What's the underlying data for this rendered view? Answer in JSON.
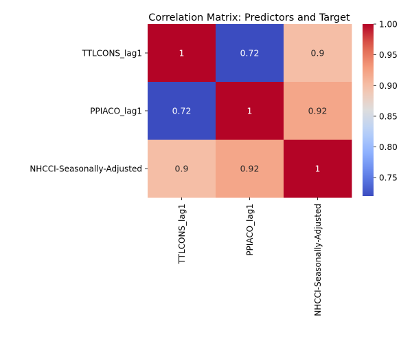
{
  "chart_data": {
    "type": "heatmap",
    "title": "Correlation Matrix: Predictors and Target",
    "row_labels": [
      "TTLCONS_lag1",
      "PPIACO_lag1",
      "NHCCI-Seasonally-Adjusted"
    ],
    "col_labels": [
      "TTLCONS_lag1",
      "PPIACO_lag1",
      "NHCCI-Seasonally-Adjusted"
    ],
    "values": [
      [
        1.0,
        0.72,
        0.9
      ],
      [
        0.72,
        1.0,
        0.92
      ],
      [
        0.9,
        0.92,
        1.0
      ]
    ],
    "cell_labels": [
      [
        "1",
        "0.72",
        "0.9"
      ],
      [
        "0.72",
        "1",
        "0.92"
      ],
      [
        "0.9",
        "0.92",
        "1"
      ]
    ],
    "colormap": "coolwarm",
    "vmin": 0.72,
    "vmax": 1.0,
    "colorbar": {
      "ticks": [
        0.75,
        0.8,
        0.85,
        0.9,
        0.95,
        1.0
      ],
      "tick_labels": [
        "0.75",
        "0.80",
        "0.85",
        "0.90",
        "0.95",
        "1.00"
      ]
    }
  }
}
